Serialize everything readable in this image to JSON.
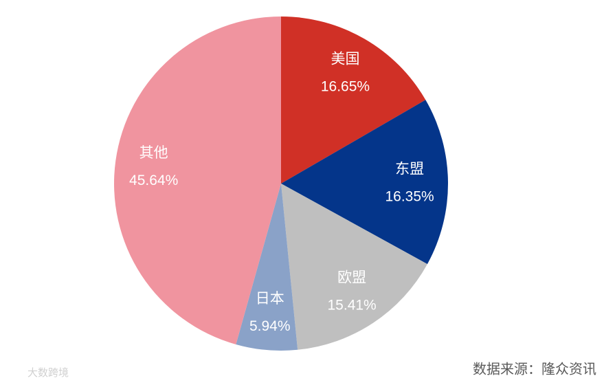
{
  "chart_data": {
    "type": "pie",
    "categories": [
      "美国",
      "东盟",
      "欧盟",
      "日本",
      "其他"
    ],
    "values": [
      16.65,
      16.35,
      15.41,
      5.94,
      45.64
    ],
    "value_labels": [
      "16.65%",
      "16.35%",
      "15.41%",
      "5.94%",
      "45.64%"
    ],
    "colors": [
      "#d03026",
      "#04358a",
      "#bfbfbf",
      "#8aa2c8",
      "#f0949f"
    ],
    "source": "数据来源：隆众资讯",
    "watermark": "大数跨境"
  }
}
